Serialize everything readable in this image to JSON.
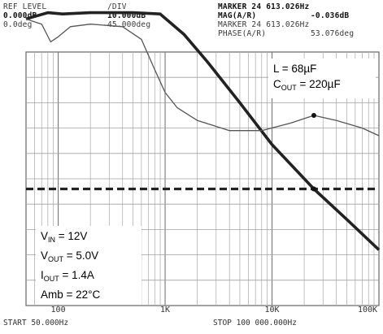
{
  "header": {
    "ref_level_label": "REF LEVEL",
    "ref_level_mag": "0.000dB",
    "ref_level_phase": "0.0deg",
    "div_label": "/DIV",
    "div_mag": "10.000dB",
    "div_phase": "45.000deg",
    "marker_freq_label": "MARKER 24 613.026Hz",
    "marker_mag_label": "MAG(A/R)",
    "marker_mag_value": "-0.036dB",
    "marker_freq_label_2": "MARKER 24 613.026Hz",
    "marker_phase_label": "PHASE(A/R)",
    "marker_phase_value": "53.076deg"
  },
  "conditions_top": {
    "l": "L = 68µF",
    "cout_prefix": "C",
    "cout_sub": "OUT",
    "cout_suffix": " = 220µF"
  },
  "conditions_bottom": {
    "vin_prefix": "V",
    "vin_sub": "IN",
    "vin_suffix": " = 12V",
    "vout_prefix": "V",
    "vout_sub": "OUT",
    "vout_suffix": " = 5.0V",
    "iout_prefix": "I",
    "iout_sub": "OUT",
    "iout_suffix": " = 1.4A",
    "amb": "Amb = 22°C"
  },
  "footer": {
    "start": "START 50.000Hz",
    "stop": "STOP 100 000.000Hz"
  },
  "chart_data": {
    "type": "line",
    "x_scale": "log",
    "xlim": [
      50,
      100000
    ],
    "x_tick_labels": [
      {
        "x": 100,
        "label": "100"
      },
      {
        "x": 1000,
        "label": "1K"
      },
      {
        "x": 10000,
        "label": "10K"
      },
      {
        "x": 100000,
        "label": "100K"
      }
    ],
    "y_divisions": 10,
    "grid": true,
    "series": [
      {
        "role": "magnitude (thick)",
        "color": "#222222",
        "points": [
          [
            50,
            0.63
          ],
          [
            60,
            0.64
          ],
          [
            80,
            0.655
          ],
          [
            110,
            0.65
          ],
          [
            200,
            0.655
          ],
          [
            500,
            0.655
          ],
          [
            900,
            0.65
          ],
          [
            1500,
            0.57
          ],
          [
            2500,
            0.46
          ],
          [
            5000,
            0.3
          ],
          [
            10000,
            0.135
          ],
          [
            24613,
            -0.04
          ],
          [
            50000,
            -0.16
          ],
          [
            100000,
            -0.28
          ]
        ]
      },
      {
        "role": "phase (thin)",
        "color": "#555555",
        "points": [
          [
            50,
            0.63
          ],
          [
            70,
            0.61
          ],
          [
            85,
            0.54
          ],
          [
            100,
            0.56
          ],
          [
            130,
            0.6
          ],
          [
            200,
            0.61
          ],
          [
            400,
            0.6
          ],
          [
            600,
            0.55
          ],
          [
            800,
            0.43
          ],
          [
            1000,
            0.34
          ],
          [
            1300,
            0.28
          ],
          [
            2000,
            0.23
          ],
          [
            4000,
            0.19
          ],
          [
            8000,
            0.19
          ],
          [
            15000,
            0.22
          ],
          [
            24613,
            0.25
          ],
          [
            40000,
            0.23
          ],
          [
            70000,
            0.2
          ],
          [
            100000,
            0.17
          ]
        ]
      },
      {
        "role": "reference (dashed)",
        "color": "#222222",
        "style": "dashed",
        "points": [
          [
            50,
            -0.04
          ],
          [
            100000,
            -0.04
          ]
        ]
      }
    ],
    "markers": [
      {
        "x": 24613,
        "series": 0
      },
      {
        "x": 24613,
        "series": 1
      }
    ]
  }
}
